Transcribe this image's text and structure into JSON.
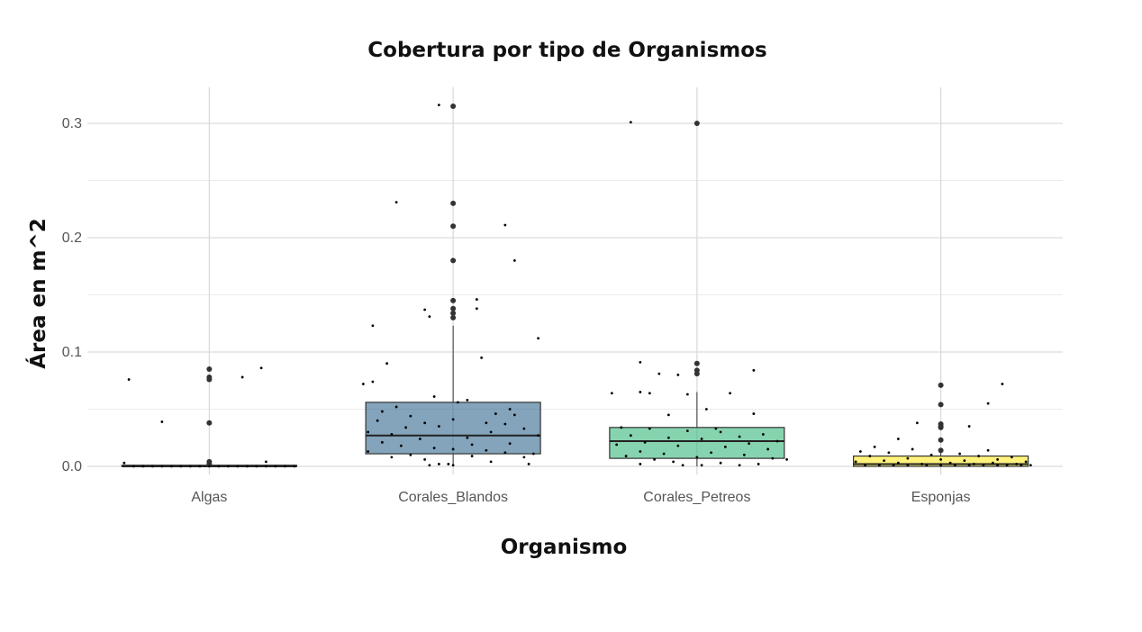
{
  "chart_data": {
    "type": "box",
    "title": "Cobertura por tipo de Organismos",
    "xlabel": "Organismo",
    "ylabel": "Área en m^2",
    "ylim": [
      -0.003,
      0.331
    ],
    "yticks": [
      0.0,
      0.1,
      0.2,
      0.3
    ],
    "ytick_labels": [
      "0.0",
      "0.1",
      "0.2",
      "0.3"
    ],
    "grid": true,
    "categories": [
      "Algas",
      "Corales_Blandos",
      "Corales_Petreos",
      "Esponjas"
    ],
    "boxes": [
      {
        "name": "Algas",
        "color": "#440154",
        "min": 0.0,
        "q1": 0.0,
        "median": 0.0,
        "q3": 0.001,
        "max": 0.001,
        "outliers": [
          0.085,
          0.078,
          0.076,
          0.038,
          0.004,
          0.002
        ],
        "jitter": [
          [
            -0.85,
            0.076
          ],
          [
            -0.5,
            0.039
          ],
          [
            0.35,
            0.078
          ],
          [
            0.55,
            0.086
          ],
          [
            -0.9,
            0.003
          ],
          [
            0.6,
            0.004
          ],
          [
            -0.8,
            0.0
          ],
          [
            -0.7,
            0.0
          ],
          [
            -0.6,
            0.0
          ],
          [
            -0.5,
            0.0
          ],
          [
            -0.4,
            0.0
          ],
          [
            -0.3,
            0.0
          ],
          [
            -0.2,
            0.0
          ],
          [
            -0.1,
            0.0
          ],
          [
            0.0,
            0.0
          ],
          [
            0.1,
            0.0
          ],
          [
            0.2,
            0.0
          ],
          [
            0.3,
            0.0
          ],
          [
            0.4,
            0.0
          ],
          [
            0.5,
            0.0
          ],
          [
            0.6,
            0.0
          ],
          [
            0.7,
            0.0
          ],
          [
            0.8,
            0.0
          ],
          [
            0.9,
            0.0
          ]
        ]
      },
      {
        "name": "Corales_Blandos",
        "color": "#31688e",
        "min": 0.0,
        "q1": 0.011,
        "median": 0.027,
        "q3": 0.056,
        "max": 0.123,
        "outliers": [
          0.315,
          0.23,
          0.21,
          0.18,
          0.145,
          0.138,
          0.134,
          0.13
        ],
        "jitter": [
          [
            -0.15,
            0.316
          ],
          [
            -0.6,
            0.231
          ],
          [
            0.55,
            0.211
          ],
          [
            0.65,
            0.18
          ],
          [
            0.25,
            0.146
          ],
          [
            0.25,
            0.138
          ],
          [
            -0.3,
            0.137
          ],
          [
            -0.25,
            0.131
          ],
          [
            -0.85,
            0.123
          ],
          [
            0.9,
            0.112
          ],
          [
            0.3,
            0.095
          ],
          [
            -0.7,
            0.09
          ],
          [
            -0.95,
            0.072
          ],
          [
            -0.85,
            0.074
          ],
          [
            -0.2,
            0.061
          ],
          [
            0.15,
            0.058
          ],
          [
            0.05,
            0.056
          ],
          [
            -0.6,
            0.052
          ],
          [
            0.6,
            0.05
          ],
          [
            -0.75,
            0.048
          ],
          [
            -0.45,
            0.044
          ],
          [
            0.45,
            0.046
          ],
          [
            0.65,
            0.045
          ],
          [
            -0.8,
            0.04
          ],
          [
            -0.3,
            0.038
          ],
          [
            0.35,
            0.038
          ],
          [
            0.0,
            0.041
          ],
          [
            0.55,
            0.037
          ],
          [
            -0.5,
            0.034
          ],
          [
            -0.15,
            0.035
          ],
          [
            0.75,
            0.033
          ],
          [
            -0.9,
            0.03
          ],
          [
            -0.65,
            0.028
          ],
          [
            0.4,
            0.03
          ],
          [
            0.9,
            0.027
          ],
          [
            -0.35,
            0.024
          ],
          [
            0.15,
            0.025
          ],
          [
            -0.75,
            0.021
          ],
          [
            0.6,
            0.02
          ],
          [
            0.2,
            0.019
          ],
          [
            -0.55,
            0.018
          ],
          [
            -0.2,
            0.016
          ],
          [
            0.0,
            0.015
          ],
          [
            0.35,
            0.014
          ],
          [
            -0.9,
            0.013
          ],
          [
            0.55,
            0.012
          ],
          [
            0.85,
            0.011
          ],
          [
            -0.45,
            0.01
          ],
          [
            0.2,
            0.009
          ],
          [
            -0.65,
            0.008
          ],
          [
            0.75,
            0.008
          ],
          [
            -0.3,
            0.006
          ],
          [
            0.4,
            0.004
          ],
          [
            -0.15,
            0.002
          ],
          [
            0.0,
            0.001
          ],
          [
            -0.05,
            0.002
          ],
          [
            0.8,
            0.002
          ],
          [
            -0.25,
            0.001
          ]
        ]
      },
      {
        "name": "Corales_Petreos",
        "color": "#35b779",
        "min": 0.0,
        "q1": 0.007,
        "median": 0.022,
        "q3": 0.034,
        "max": 0.065,
        "outliers": [
          0.3,
          0.09,
          0.084,
          0.081
        ],
        "jitter": [
          [
            -0.7,
            0.301
          ],
          [
            0.6,
            0.084
          ],
          [
            -0.6,
            0.091
          ],
          [
            -0.4,
            0.081
          ],
          [
            -0.2,
            0.08
          ],
          [
            -0.5,
            0.064
          ],
          [
            -0.6,
            0.065
          ],
          [
            -0.9,
            0.064
          ],
          [
            0.35,
            0.064
          ],
          [
            -0.1,
            0.063
          ],
          [
            0.1,
            0.05
          ],
          [
            0.6,
            0.046
          ],
          [
            -0.3,
            0.045
          ],
          [
            -0.8,
            0.034
          ],
          [
            -0.5,
            0.033
          ],
          [
            0.2,
            0.033
          ],
          [
            0.25,
            0.03
          ],
          [
            -0.1,
            0.031
          ],
          [
            0.7,
            0.028
          ],
          [
            -0.7,
            0.027
          ],
          [
            0.45,
            0.026
          ],
          [
            -0.3,
            0.025
          ],
          [
            0.05,
            0.024
          ],
          [
            0.85,
            0.022
          ],
          [
            -0.55,
            0.021
          ],
          [
            0.55,
            0.02
          ],
          [
            -0.85,
            0.019
          ],
          [
            -0.2,
            0.018
          ],
          [
            0.3,
            0.017
          ],
          [
            0.75,
            0.015
          ],
          [
            -0.6,
            0.013
          ],
          [
            0.15,
            0.012
          ],
          [
            -0.35,
            0.011
          ],
          [
            0.5,
            0.01
          ],
          [
            -0.75,
            0.009
          ],
          [
            0.0,
            0.008
          ],
          [
            0.8,
            0.007
          ],
          [
            -0.45,
            0.006
          ],
          [
            -0.25,
            0.004
          ],
          [
            0.25,
            0.003
          ],
          [
            -0.6,
            0.002
          ],
          [
            0.05,
            0.001
          ],
          [
            0.45,
            0.001
          ],
          [
            -0.15,
            0.001
          ],
          [
            0.65,
            0.002
          ],
          [
            0.95,
            0.006
          ]
        ]
      },
      {
        "name": "Esponjas",
        "color": "#fde725",
        "min": 0.0,
        "q1": 0.0,
        "median": 0.002,
        "q3": 0.009,
        "max": 0.013,
        "outliers": [
          0.071,
          0.054,
          0.037,
          0.035,
          0.034,
          0.023,
          0.014
        ],
        "jitter": [
          [
            0.65,
            0.072
          ],
          [
            0.5,
            0.055
          ],
          [
            -0.25,
            0.038
          ],
          [
            0.3,
            0.035
          ],
          [
            -0.45,
            0.024
          ],
          [
            -0.7,
            0.017
          ],
          [
            -0.3,
            0.015
          ],
          [
            -0.85,
            0.013
          ],
          [
            0.5,
            0.014
          ],
          [
            -0.55,
            0.012
          ],
          [
            0.2,
            0.011
          ],
          [
            -0.1,
            0.01
          ],
          [
            0.4,
            0.009
          ],
          [
            -0.75,
            0.009
          ],
          [
            0.75,
            0.008
          ],
          [
            -0.35,
            0.007
          ],
          [
            0.0,
            0.006
          ],
          [
            0.6,
            0.006
          ],
          [
            -0.6,
            0.005
          ],
          [
            0.25,
            0.005
          ],
          [
            -0.9,
            0.004
          ],
          [
            0.9,
            0.004
          ],
          [
            -0.45,
            0.003
          ],
          [
            0.1,
            0.003
          ],
          [
            0.55,
            0.003
          ],
          [
            -0.2,
            0.002
          ],
          [
            0.35,
            0.002
          ],
          [
            0.8,
            0.002
          ],
          [
            -0.8,
            0.001
          ],
          [
            -0.65,
            0.001
          ],
          [
            -0.5,
            0.001
          ],
          [
            -0.35,
            0.001
          ],
          [
            -0.15,
            0.001
          ],
          [
            0.0,
            0.001
          ],
          [
            0.15,
            0.001
          ],
          [
            0.3,
            0.001
          ],
          [
            0.45,
            0.001
          ],
          [
            0.6,
            0.001
          ],
          [
            0.7,
            0.001
          ],
          [
            0.85,
            0.001
          ],
          [
            0.95,
            0.001
          ]
        ]
      }
    ]
  }
}
